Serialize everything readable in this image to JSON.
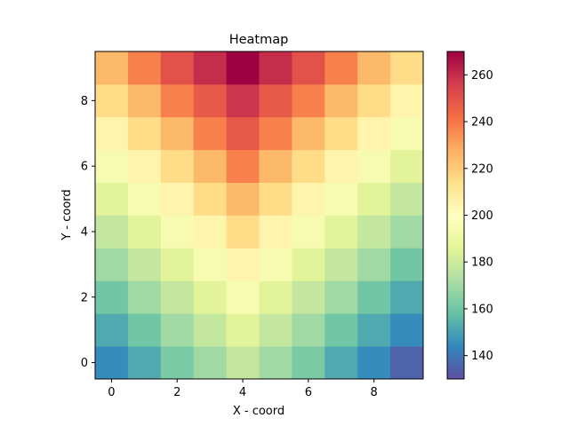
{
  "chart_data": {
    "type": "heatmap",
    "title": "Heatmap",
    "xlabel": "X - coord",
    "ylabel": "Y - coord",
    "x": [
      0,
      1,
      2,
      3,
      4,
      5,
      6,
      7,
      8,
      9
    ],
    "y": [
      0,
      1,
      2,
      3,
      4,
      5,
      6,
      7,
      8,
      9
    ],
    "xticks": [
      0,
      2,
      4,
      6,
      8
    ],
    "yticks": [
      0,
      2,
      4,
      6,
      8
    ],
    "colormap": "Spectral_r",
    "colorbar": {
      "min": 130,
      "max": 270,
      "ticks": [
        140,
        160,
        180,
        200,
        220,
        240,
        260
      ]
    },
    "values": [
      [
        145,
        152,
        162,
        170,
        178,
        170,
        162,
        152,
        145,
        135
      ],
      [
        152,
        160,
        170,
        178,
        185,
        178,
        170,
        160,
        152,
        145
      ],
      [
        160,
        170,
        178,
        185,
        195,
        185,
        178,
        170,
        160,
        152
      ],
      [
        170,
        178,
        185,
        195,
        205,
        195,
        185,
        178,
        170,
        160
      ],
      [
        178,
        185,
        195,
        205,
        215,
        205,
        195,
        185,
        178,
        170
      ],
      [
        185,
        195,
        205,
        215,
        225,
        215,
        205,
        195,
        185,
        178
      ],
      [
        195,
        205,
        215,
        225,
        238,
        225,
        215,
        205,
        195,
        185
      ],
      [
        205,
        215,
        225,
        238,
        248,
        238,
        225,
        215,
        205,
        195
      ],
      [
        215,
        225,
        238,
        248,
        258,
        248,
        238,
        225,
        215,
        205
      ],
      [
        225,
        238,
        250,
        260,
        270,
        260,
        250,
        238,
        225,
        215
      ]
    ]
  }
}
